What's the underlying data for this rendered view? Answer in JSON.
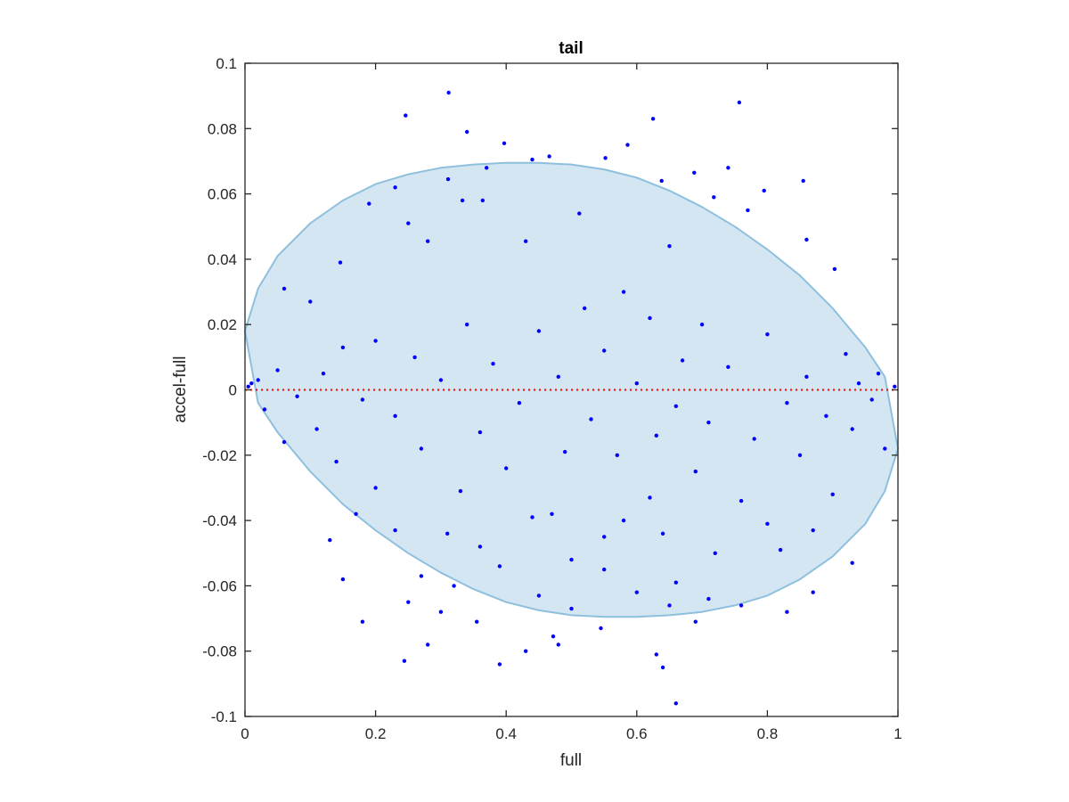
{
  "chart_data": {
    "type": "scatter",
    "title": "tail",
    "xlabel": "full",
    "ylabel": "accel-full",
    "xlim": [
      0,
      1
    ],
    "ylim": [
      -0.1,
      0.1
    ],
    "x_ticks": [
      0,
      0.2,
      0.4,
      0.6,
      0.8,
      1
    ],
    "x_tick_labels": [
      "0",
      "0.2",
      "0.4",
      "0.6",
      "0.8",
      "1"
    ],
    "y_ticks": [
      0.1,
      0.08,
      0.06,
      0.04,
      0.02,
      0,
      -0.02,
      -0.04,
      -0.06,
      -0.08,
      -0.1
    ],
    "y_tick_labels": [
      "0.1",
      "0.08",
      "0.06",
      "0.04",
      "0.02",
      "0",
      "-0.02",
      "-0.04",
      "-0.06",
      "-0.08",
      "-0.1"
    ],
    "grid": false,
    "legend": "none",
    "reference_line": {
      "y": 0,
      "style": "dotted",
      "color": "#ff0000"
    },
    "region": {
      "shape": "ellipse",
      "fill": "#d5e6f3",
      "stroke": "#8ec0de",
      "points": [
        [
          0.0,
          0.018
        ],
        [
          0.02,
          0.031
        ],
        [
          0.05,
          0.041
        ],
        [
          0.1,
          0.051
        ],
        [
          0.15,
          0.058
        ],
        [
          0.2,
          0.063
        ],
        [
          0.25,
          0.066
        ],
        [
          0.3,
          0.068
        ],
        [
          0.35,
          0.069
        ],
        [
          0.4,
          0.0695
        ],
        [
          0.45,
          0.0695
        ],
        [
          0.5,
          0.069
        ],
        [
          0.55,
          0.0675
        ],
        [
          0.6,
          0.065
        ],
        [
          0.65,
          0.061
        ],
        [
          0.7,
          0.056
        ],
        [
          0.75,
          0.05
        ],
        [
          0.8,
          0.043
        ],
        [
          0.85,
          0.035
        ],
        [
          0.9,
          0.025
        ],
        [
          0.95,
          0.013
        ],
        [
          0.98,
          0.004
        ],
        [
          1.0,
          -0.018
        ],
        [
          0.98,
          -0.031
        ],
        [
          0.95,
          -0.041
        ],
        [
          0.9,
          -0.051
        ],
        [
          0.85,
          -0.058
        ],
        [
          0.8,
          -0.063
        ],
        [
          0.75,
          -0.066
        ],
        [
          0.7,
          -0.068
        ],
        [
          0.65,
          -0.069
        ],
        [
          0.6,
          -0.0695
        ],
        [
          0.55,
          -0.0695
        ],
        [
          0.5,
          -0.069
        ],
        [
          0.45,
          -0.0675
        ],
        [
          0.4,
          -0.065
        ],
        [
          0.35,
          -0.061
        ],
        [
          0.3,
          -0.056
        ],
        [
          0.25,
          -0.05
        ],
        [
          0.2,
          -0.043
        ],
        [
          0.15,
          -0.035
        ],
        [
          0.1,
          -0.025
        ],
        [
          0.05,
          -0.013
        ],
        [
          0.02,
          -0.004
        ]
      ]
    },
    "series": [
      {
        "color": "#0000ff",
        "points": [
          [
            0.312,
            0.091
          ],
          [
            0.757,
            0.088
          ],
          [
            0.246,
            0.084
          ],
          [
            0.625,
            0.083
          ],
          [
            0.34,
            0.079
          ],
          [
            0.397,
            0.0755
          ],
          [
            0.586,
            0.075
          ],
          [
            0.466,
            0.0715
          ],
          [
            0.552,
            0.071
          ],
          [
            0.44,
            0.0705
          ],
          [
            0.74,
            0.068
          ],
          [
            0.37,
            0.068
          ],
          [
            0.688,
            0.0665
          ],
          [
            0.311,
            0.0645
          ],
          [
            0.855,
            0.064
          ],
          [
            0.23,
            0.062
          ],
          [
            0.638,
            0.064
          ],
          [
            0.795,
            0.061
          ],
          [
            0.718,
            0.059
          ],
          [
            0.333,
            0.058
          ],
          [
            0.364,
            0.058
          ],
          [
            0.19,
            0.057
          ],
          [
            0.77,
            0.055
          ],
          [
            0.512,
            0.054
          ],
          [
            0.25,
            0.051
          ],
          [
            0.86,
            0.046
          ],
          [
            0.43,
            0.0455
          ],
          [
            0.28,
            0.0455
          ],
          [
            0.65,
            0.044
          ],
          [
            0.146,
            0.039
          ],
          [
            0.903,
            0.037
          ],
          [
            0.06,
            0.031
          ],
          [
            0.1,
            0.027
          ],
          [
            0.58,
            0.03
          ],
          [
            0.52,
            0.025
          ],
          [
            0.62,
            0.022
          ],
          [
            0.7,
            0.02
          ],
          [
            0.34,
            0.02
          ],
          [
            0.45,
            0.018
          ],
          [
            0.8,
            0.017
          ],
          [
            0.2,
            0.015
          ],
          [
            0.15,
            0.013
          ],
          [
            0.55,
            0.012
          ],
          [
            0.92,
            0.011
          ],
          [
            0.26,
            0.01
          ],
          [
            0.67,
            0.009
          ],
          [
            0.38,
            0.008
          ],
          [
            0.74,
            0.007
          ],
          [
            0.05,
            0.006
          ],
          [
            0.12,
            0.005
          ],
          [
            0.48,
            0.004
          ],
          [
            0.86,
            0.004
          ],
          [
            0.97,
            0.005
          ],
          [
            0.3,
            0.003
          ],
          [
            0.6,
            0.002
          ],
          [
            0.02,
            0.003
          ],
          [
            0.01,
            0.002
          ],
          [
            0.005,
            0.001
          ],
          [
            0.995,
            0.001
          ],
          [
            0.94,
            0.002
          ],
          [
            0.08,
            -0.002
          ],
          [
            0.18,
            -0.003
          ],
          [
            0.42,
            -0.004
          ],
          [
            0.66,
            -0.005
          ],
          [
            0.83,
            -0.004
          ],
          [
            0.96,
            -0.003
          ],
          [
            0.03,
            -0.006
          ],
          [
            0.23,
            -0.008
          ],
          [
            0.53,
            -0.009
          ],
          [
            0.71,
            -0.01
          ],
          [
            0.89,
            -0.008
          ],
          [
            0.11,
            -0.012
          ],
          [
            0.36,
            -0.013
          ],
          [
            0.63,
            -0.014
          ],
          [
            0.78,
            -0.015
          ],
          [
            0.93,
            -0.012
          ],
          [
            0.06,
            -0.016
          ],
          [
            0.27,
            -0.018
          ],
          [
            0.49,
            -0.019
          ],
          [
            0.57,
            -0.02
          ],
          [
            0.85,
            -0.02
          ],
          [
            0.14,
            -0.022
          ],
          [
            0.4,
            -0.024
          ],
          [
            0.69,
            -0.025
          ],
          [
            0.98,
            -0.018
          ],
          [
            0.2,
            -0.03
          ],
          [
            0.33,
            -0.031
          ],
          [
            0.62,
            -0.033
          ],
          [
            0.76,
            -0.034
          ],
          [
            0.9,
            -0.032
          ],
          [
            0.17,
            -0.038
          ],
          [
            0.44,
            -0.039
          ],
          [
            0.47,
            -0.038
          ],
          [
            0.58,
            -0.04
          ],
          [
            0.8,
            -0.041
          ],
          [
            0.23,
            -0.043
          ],
          [
            0.31,
            -0.044
          ],
          [
            0.55,
            -0.045
          ],
          [
            0.64,
            -0.044
          ],
          [
            0.87,
            -0.043
          ],
          [
            0.13,
            -0.046
          ],
          [
            0.36,
            -0.048
          ],
          [
            0.72,
            -0.05
          ],
          [
            0.82,
            -0.049
          ],
          [
            0.5,
            -0.052
          ],
          [
            0.39,
            -0.054
          ],
          [
            0.55,
            -0.055
          ],
          [
            0.93,
            -0.053
          ],
          [
            0.27,
            -0.057
          ],
          [
            0.32,
            -0.06
          ],
          [
            0.66,
            -0.059
          ],
          [
            0.87,
            -0.062
          ],
          [
            0.15,
            -0.058
          ],
          [
            0.6,
            -0.062
          ],
          [
            0.45,
            -0.063
          ],
          [
            0.71,
            -0.064
          ],
          [
            0.25,
            -0.065
          ],
          [
            0.5,
            -0.067
          ],
          [
            0.65,
            -0.066
          ],
          [
            0.76,
            -0.066
          ],
          [
            0.83,
            -0.068
          ],
          [
            0.18,
            -0.071
          ],
          [
            0.3,
            -0.068
          ],
          [
            0.355,
            -0.071
          ],
          [
            0.545,
            -0.073
          ],
          [
            0.69,
            -0.071
          ],
          [
            0.28,
            -0.078
          ],
          [
            0.472,
            -0.0755
          ],
          [
            0.43,
            -0.08
          ],
          [
            0.63,
            -0.081
          ],
          [
            0.48,
            -0.078
          ],
          [
            0.39,
            -0.084
          ],
          [
            0.244,
            -0.083
          ],
          [
            0.64,
            -0.085
          ],
          [
            0.66,
            -0.096
          ]
        ]
      }
    ]
  }
}
